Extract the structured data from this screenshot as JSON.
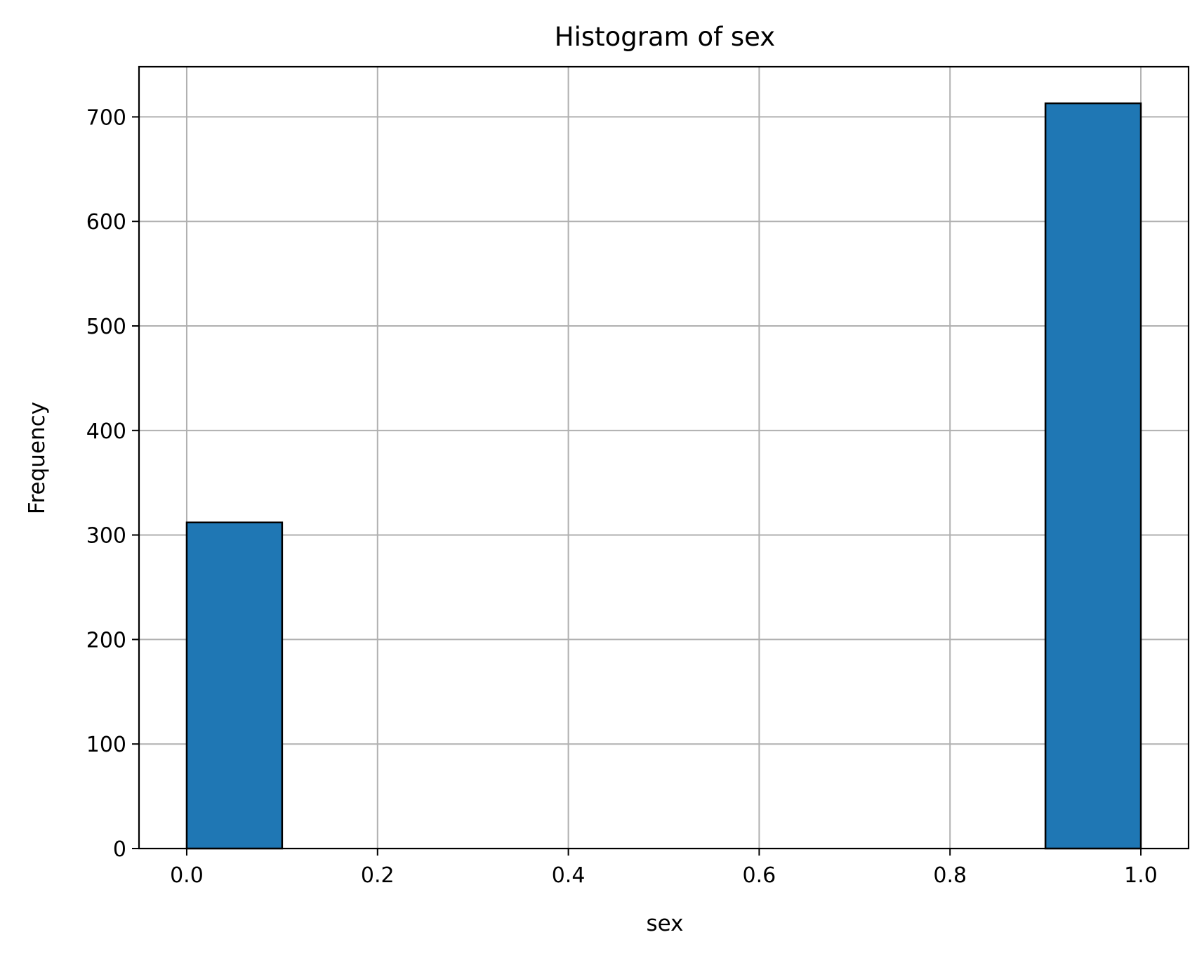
{
  "chart_data": {
    "type": "bar",
    "title": "Histogram of sex",
    "xlabel": "sex",
    "ylabel": "Frequency",
    "xlim": [
      -0.05,
      1.05
    ],
    "ylim": [
      0,
      748
    ],
    "x_ticks": [
      {
        "value": 0.0,
        "label": "0.0"
      },
      {
        "value": 0.2,
        "label": "0.2"
      },
      {
        "value": 0.4,
        "label": "0.4"
      },
      {
        "value": 0.6,
        "label": "0.6"
      },
      {
        "value": 0.8,
        "label": "0.8"
      },
      {
        "value": 1.0,
        "label": "1.0"
      }
    ],
    "y_ticks": [
      {
        "value": 0,
        "label": "0"
      },
      {
        "value": 100,
        "label": "100"
      },
      {
        "value": 200,
        "label": "200"
      },
      {
        "value": 300,
        "label": "300"
      },
      {
        "value": 400,
        "label": "400"
      },
      {
        "value": 500,
        "label": "500"
      },
      {
        "value": 600,
        "label": "600"
      },
      {
        "value": 700,
        "label": "700"
      }
    ],
    "bins": [
      {
        "x0": 0.0,
        "x1": 0.1,
        "count": 312
      },
      {
        "x0": 0.9,
        "x1": 1.0,
        "count": 713
      }
    ],
    "grid": true,
    "bar_color": "#1f77b4",
    "edge_color": "#000000"
  }
}
